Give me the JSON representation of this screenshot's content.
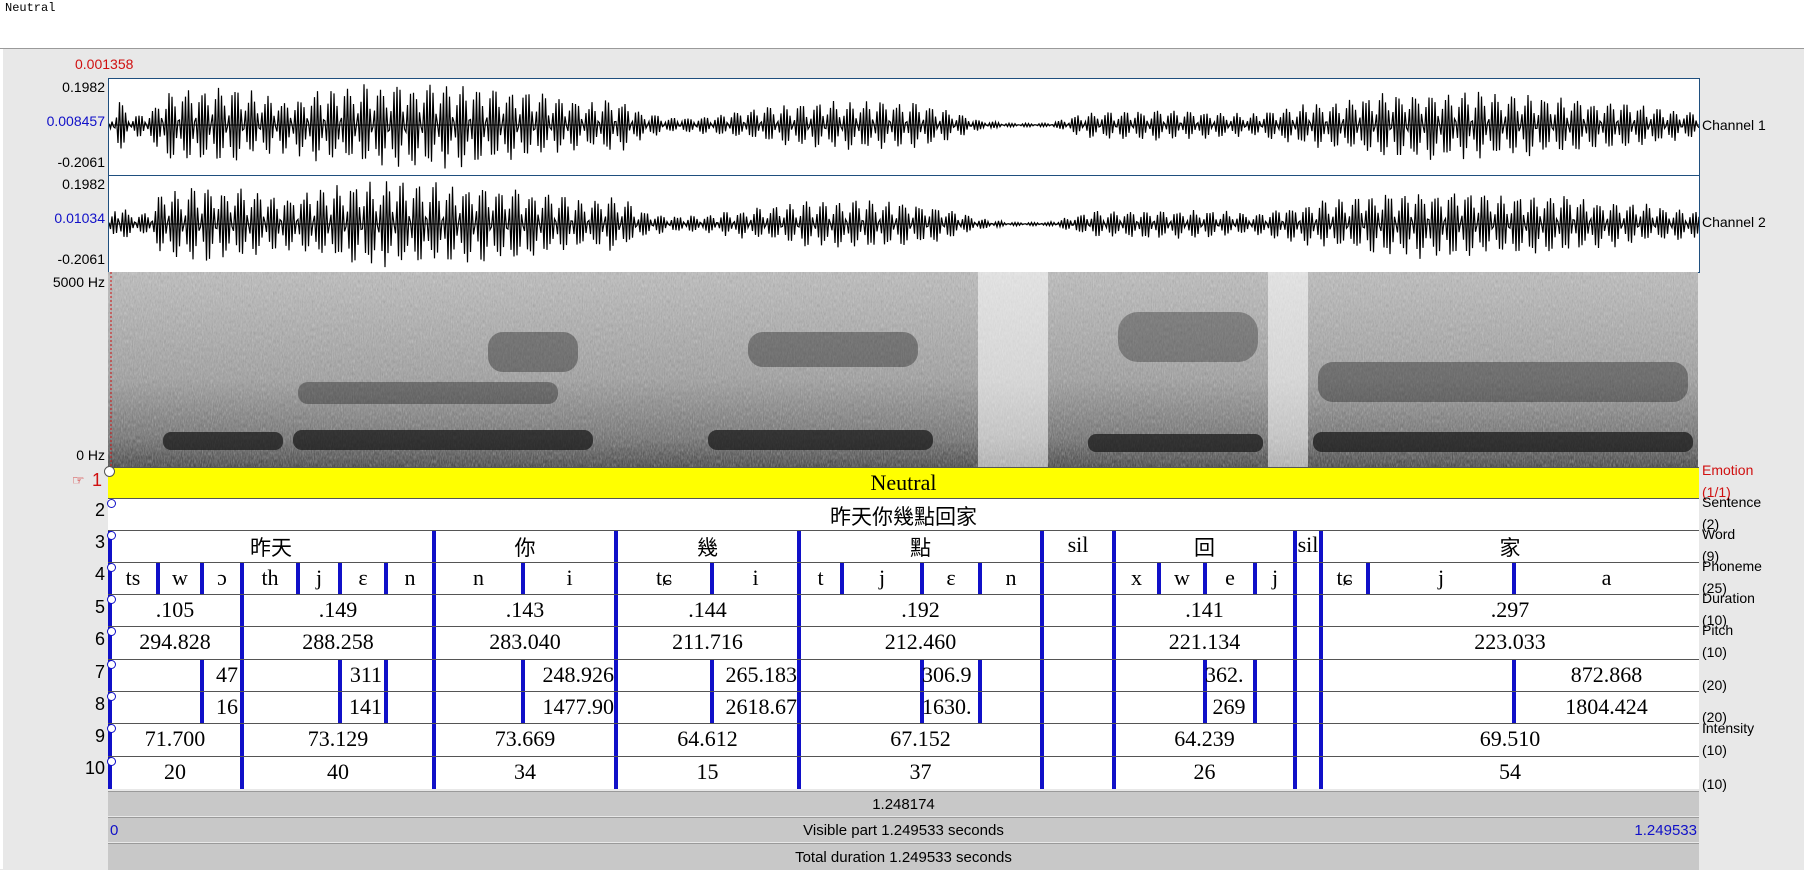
{
  "header": {
    "text": "Neutral"
  },
  "waveform": {
    "cursor_amplitude": "0.001358",
    "channels": [
      {
        "name": "Channel 1",
        "max": "0.1982",
        "value": "0.008457",
        "min": "-0.2061"
      },
      {
        "name": "Channel 2",
        "max": "0.1982",
        "value": "0.01034",
        "min": "-0.2061"
      }
    ]
  },
  "spectrogram": {
    "top_label": "5000 Hz",
    "bottom_label": "0 Hz"
  },
  "tiers": [
    {
      "num": "1",
      "name": "Emotion",
      "count": "(1/1)"
    },
    {
      "num": "2",
      "name": "Sentence",
      "count": "(2)"
    },
    {
      "num": "3",
      "name": "Word",
      "count": "(9)"
    },
    {
      "num": "4",
      "name": "Phoneme",
      "count": "(25)"
    },
    {
      "num": "5",
      "name": "Duration",
      "count": "(10)"
    },
    {
      "num": "6",
      "name": "Pitch",
      "count": "(10)"
    },
    {
      "num": "7",
      "name": "",
      "count": "(20)"
    },
    {
      "num": "8",
      "name": "",
      "count": "(20)"
    },
    {
      "num": "9",
      "name": "Intensity",
      "count": "(10)"
    },
    {
      "num": "10",
      "name": "",
      "count": "(10)"
    }
  ],
  "emotion_label": "Neutral",
  "sentence": "昨天你幾點回家",
  "words": [
    "昨天",
    "你",
    "幾",
    "點",
    "sil",
    "回",
    "sil",
    "家"
  ],
  "phonemes": [
    "ts",
    "w",
    "ɔ",
    "th",
    "j",
    "ɛ",
    "n",
    "n",
    "i",
    "tɕ",
    "i",
    "t",
    "j",
    "ɛ",
    "n",
    "x",
    "w",
    "e",
    "j",
    "tɕ",
    "j",
    "a"
  ],
  "durations": [
    ".105",
    ".149",
    ".143",
    ".144",
    ".192",
    ".141",
    ".297"
  ],
  "pitches": [
    "294.828",
    "288.258",
    "283.040",
    "211.716",
    "212.460",
    "221.134",
    "223.033"
  ],
  "tier7": [
    "47",
    "311",
    "248.926",
    "265.183",
    "306.9",
    "362.",
    "872.868"
  ],
  "tier8": [
    "16",
    "141",
    "1477.90",
    "2618.67",
    "1630.",
    "269",
    "1804.424"
  ],
  "intensities": [
    "71.700",
    "73.129",
    "73.669",
    "64.612",
    "67.152",
    "64.239",
    "69.510"
  ],
  "tier10": [
    "20",
    "40",
    "34",
    "15",
    "37",
    "26",
    "54"
  ],
  "footer": {
    "selection": "1.248174",
    "visible_start": "0",
    "visible_text": "Visible part 1.249533 seconds",
    "visible_end": "1.249533",
    "total_text": "Total duration 1.249533 seconds"
  },
  "colors": {
    "emotion_fill": "#ffff00",
    "boundary": "#1010c8",
    "label_red": "#d01010",
    "label_blue": "#1010c8"
  }
}
